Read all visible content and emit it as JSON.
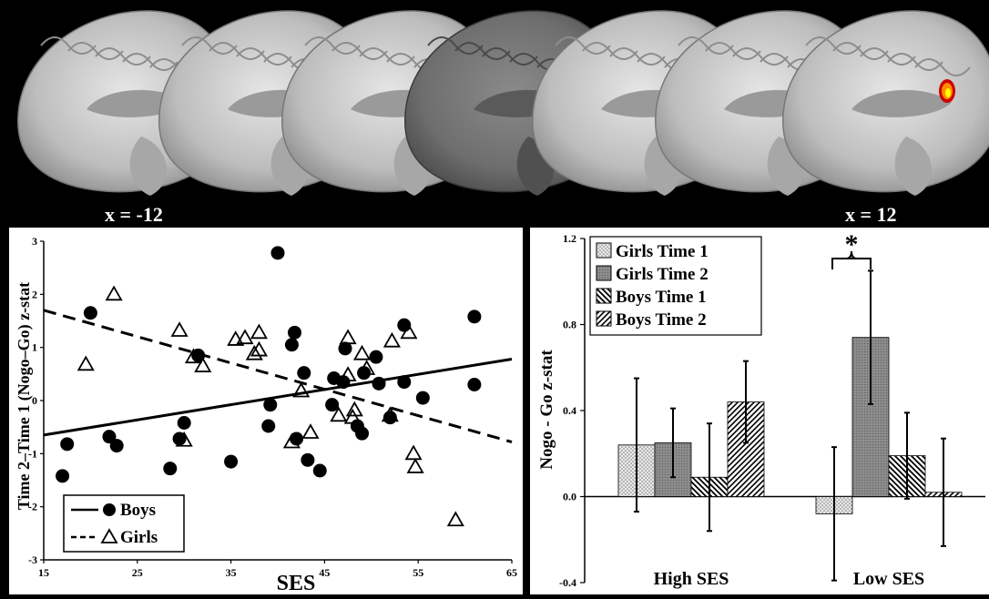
{
  "brain_strip": {
    "left_label": "x = -12",
    "right_label": "x = 12",
    "activation_colors": [
      "#ffff00",
      "#ff8c00",
      "#cc0000"
    ]
  },
  "chart_data": [
    {
      "type": "scatter",
      "xlabel": "SES",
      "ylabel": "Time 2–Time 1 (Nogo–Go) z-stat",
      "xlim": [
        15,
        65
      ],
      "ylim": [
        -3,
        3
      ],
      "xticks": [
        "15",
        "25",
        "35",
        "45",
        "55",
        "65"
      ],
      "yticks": [
        "-3",
        "-2",
        "-1",
        "0",
        "1",
        "2",
        "3"
      ],
      "legend": "bottom-left",
      "series": [
        {
          "name": "Boys",
          "marker": "filled-circle",
          "line": "solid",
          "trend": [
            [
              15,
              -0.65
            ],
            [
              65,
              0.78
            ]
          ],
          "points": [
            [
              17,
              -1.42
            ],
            [
              17.5,
              -0.82
            ],
            [
              20,
              1.65
            ],
            [
              22,
              -0.68
            ],
            [
              22.8,
              -0.85
            ],
            [
              28.5,
              -1.28
            ],
            [
              29.5,
              -0.72
            ],
            [
              30,
              -0.42
            ],
            [
              31.5,
              0.85
            ],
            [
              35,
              -1.15
            ],
            [
              39,
              -0.48
            ],
            [
              39.2,
              -0.08
            ],
            [
              40,
              2.78
            ],
            [
              41.5,
              1.05
            ],
            [
              41.8,
              1.28
            ],
            [
              42,
              -0.72
            ],
            [
              42.8,
              0.52
            ],
            [
              43.2,
              -1.12
            ],
            [
              44.5,
              -1.32
            ],
            [
              45.8,
              -0.08
            ],
            [
              46,
              0.42
            ],
            [
              47,
              0.35
            ],
            [
              47.2,
              0.98
            ],
            [
              48.5,
              -0.48
            ],
            [
              49,
              -0.62
            ],
            [
              49.2,
              0.52
            ],
            [
              50.5,
              0.82
            ],
            [
              50.8,
              0.32
            ],
            [
              52,
              -0.32
            ],
            [
              53.5,
              1.42
            ],
            [
              53.5,
              0.35
            ],
            [
              55.5,
              0.05
            ],
            [
              61,
              1.58
            ],
            [
              61,
              0.3
            ]
          ]
        },
        {
          "name": "Girls",
          "marker": "open-triangle",
          "line": "dashed",
          "trend": [
            [
              15,
              1.7
            ],
            [
              65,
              -0.78
            ]
          ],
          "points": [
            [
              19.5,
              0.68
            ],
            [
              22.5,
              2.0
            ],
            [
              29.5,
              1.32
            ],
            [
              30,
              -0.75
            ],
            [
              31,
              0.82
            ],
            [
              32,
              0.65
            ],
            [
              35.5,
              1.15
            ],
            [
              36.5,
              1.18
            ],
            [
              37.5,
              0.88
            ],
            [
              38,
              1.28
            ],
            [
              38,
              0.95
            ],
            [
              41.5,
              -0.78
            ],
            [
              42.5,
              0.18
            ],
            [
              43.5,
              -0.6
            ],
            [
              46.5,
              -0.28
            ],
            [
              47.5,
              0.48
            ],
            [
              47.5,
              1.18
            ],
            [
              48,
              -0.32
            ],
            [
              48.2,
              -0.18
            ],
            [
              49,
              0.88
            ],
            [
              49.5,
              0.6
            ],
            [
              52,
              -0.28
            ],
            [
              52.2,
              1.12
            ],
            [
              54,
              1.28
            ],
            [
              54.5,
              -1.0
            ],
            [
              54.7,
              -1.25
            ],
            [
              59,
              -2.25
            ]
          ]
        }
      ]
    },
    {
      "type": "bar",
      "xlabel": "",
      "ylabel": "Nogo - Go z-stat",
      "ylim": [
        -0.4,
        1.2
      ],
      "yticks": [
        "-0.4",
        "0.0",
        "0.4",
        "0.8",
        "1.2"
      ],
      "categories": [
        "High SES",
        "Low SES"
      ],
      "legend": "top-left",
      "significance": {
        "category": "Low SES",
        "label": "*"
      },
      "series": [
        {
          "name": "Girls Time 1",
          "pattern": "dots",
          "values": [
            0.24,
            -0.08
          ],
          "errors": [
            0.31,
            0.31
          ]
        },
        {
          "name": "Girls Time 2",
          "pattern": "dark",
          "values": [
            0.25,
            0.74
          ],
          "errors": [
            0.16,
            0.31
          ]
        },
        {
          "name": "Boys Time 1",
          "pattern": "backslash",
          "values": [
            0.09,
            0.19
          ],
          "errors": [
            0.25,
            0.2
          ]
        },
        {
          "name": "Boys Time 2",
          "pattern": "slash",
          "values": [
            0.44,
            0.02
          ],
          "errors": [
            0.19,
            0.25
          ]
        }
      ]
    }
  ]
}
